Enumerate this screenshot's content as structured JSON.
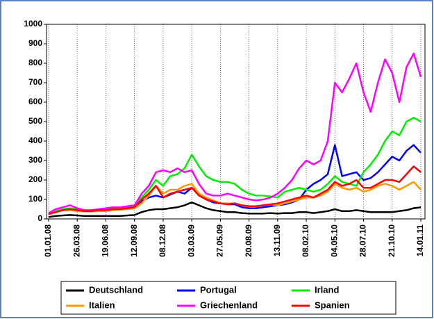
{
  "chart_data": {
    "type": "line",
    "categories": [
      "01.01.08",
      null,
      null,
      null,
      "26.03.08",
      null,
      null,
      null,
      "19.06.08",
      null,
      null,
      null,
      "12.09.08",
      null,
      null,
      null,
      "08.12.08",
      null,
      null,
      null,
      "03.03.09",
      null,
      null,
      null,
      "27.05.09",
      null,
      null,
      null,
      "20.08.09",
      null,
      null,
      null,
      "13.11.09",
      null,
      null,
      null,
      "08.02.10",
      null,
      null,
      null,
      "04.05.10",
      null,
      null,
      null,
      "28.07.10",
      null,
      null,
      null,
      "21.10.10",
      null,
      null,
      null,
      "14.01.11"
    ],
    "series": [
      {
        "name": "Deutschland",
        "color": "#000000",
        "values": [
          10,
          15,
          18,
          20,
          18,
          15,
          15,
          15,
          15,
          15,
          15,
          18,
          20,
          35,
          45,
          50,
          50,
          55,
          60,
          70,
          85,
          70,
          55,
          45,
          40,
          35,
          35,
          30,
          28,
          28,
          28,
          30,
          28,
          30,
          30,
          35,
          35,
          30,
          35,
          40,
          50,
          40,
          40,
          45,
          40,
          35,
          35,
          35,
          35,
          40,
          45,
          55,
          60
        ]
      },
      {
        "name": "Portugal",
        "color": "#0000ff",
        "values": [
          25,
          35,
          45,
          50,
          45,
          40,
          40,
          45,
          45,
          50,
          50,
          55,
          60,
          90,
          110,
          120,
          110,
          125,
          140,
          130,
          160,
          130,
          100,
          85,
          80,
          75,
          75,
          60,
          55,
          55,
          60,
          65,
          70,
          75,
          85,
          100,
          150,
          180,
          200,
          230,
          380,
          220,
          230,
          240,
          200,
          210,
          240,
          280,
          320,
          300,
          350,
          380,
          340
        ]
      },
      {
        "name": "Irland",
        "color": "#00ee00",
        "values": [
          25,
          40,
          50,
          55,
          50,
          40,
          45,
          50,
          50,
          55,
          55,
          60,
          70,
          110,
          150,
          200,
          170,
          220,
          230,
          260,
          330,
          270,
          220,
          200,
          190,
          190,
          180,
          150,
          130,
          120,
          120,
          115,
          110,
          140,
          150,
          160,
          150,
          140,
          150,
          180,
          220,
          190,
          180,
          170,
          240,
          280,
          330,
          400,
          450,
          430,
          500,
          520,
          500
        ]
      },
      {
        "name": "Italien",
        "color": "#ff9900",
        "values": [
          25,
          35,
          45,
          45,
          40,
          38,
          38,
          40,
          40,
          45,
          48,
          50,
          55,
          80,
          120,
          170,
          130,
          150,
          150,
          170,
          180,
          130,
          110,
          95,
          80,
          80,
          80,
          70,
          65,
          65,
          70,
          75,
          70,
          80,
          90,
          100,
          110,
          110,
          120,
          140,
          180,
          160,
          150,
          160,
          140,
          150,
          170,
          180,
          170,
          150,
          170,
          190,
          150
        ]
      },
      {
        "name": "Griechenland",
        "color": "#ff00ff",
        "values": [
          30,
          50,
          60,
          70,
          55,
          45,
          45,
          50,
          55,
          60,
          60,
          65,
          70,
          130,
          170,
          240,
          250,
          240,
          260,
          240,
          250,
          180,
          130,
          120,
          120,
          130,
          120,
          110,
          100,
          95,
          100,
          110,
          130,
          160,
          200,
          260,
          300,
          280,
          300,
          400,
          700,
          650,
          720,
          800,
          650,
          550,
          700,
          820,
          750,
          600,
          780,
          850,
          730
        ]
      },
      {
        "name": "Spanien",
        "color": "#ff0000",
        "values": [
          25,
          35,
          45,
          50,
          45,
          40,
          40,
          45,
          45,
          50,
          50,
          55,
          60,
          100,
          130,
          170,
          110,
          130,
          140,
          150,
          160,
          120,
          100,
          90,
          80,
          75,
          80,
          70,
          65,
          65,
          70,
          75,
          80,
          90,
          100,
          110,
          120,
          110,
          130,
          150,
          190,
          170,
          180,
          200,
          160,
          160,
          180,
          200,
          200,
          190,
          230,
          270,
          240
        ]
      }
    ],
    "ylim": [
      0,
      1000
    ],
    "yticks": [
      0,
      100,
      200,
      300,
      400,
      500,
      600,
      700,
      800,
      900,
      1000
    ],
    "grid": "x",
    "legend": "bottom"
  }
}
